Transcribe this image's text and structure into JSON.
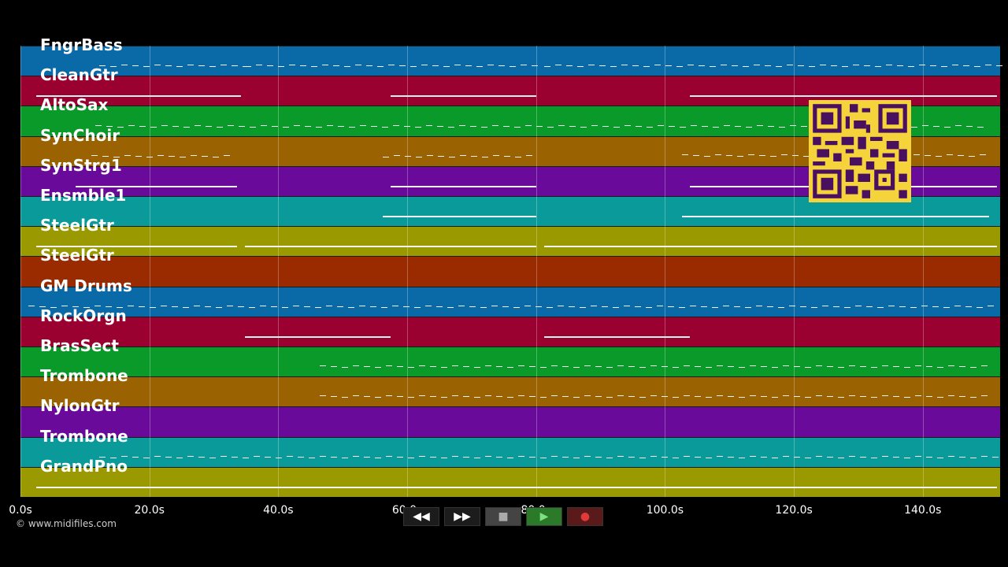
{
  "tracks": [
    {
      "name": "FngrBass",
      "color": "#0a6aa8"
    },
    {
      "name": "CleanGtr",
      "color": "#9a0030"
    },
    {
      "name": "AltoSax",
      "color": "#0a9a2a"
    },
    {
      "name": "SynChoir",
      "color": "#9a6200"
    },
    {
      "name": "SynStrg1",
      "color": "#6a0a9a"
    },
    {
      "name": "Ensmble1",
      "color": "#0a9a9a"
    },
    {
      "name": "SteelGtr",
      "color": "#9a9a00"
    },
    {
      "name": "SteelGtr",
      "color": "#9a2a00"
    },
    {
      "name": "GM Drums",
      "color": "#0a6aa8"
    },
    {
      "name": "RockOrgn",
      "color": "#9a0030"
    },
    {
      "name": "BrasSect",
      "color": "#0a9a2a"
    },
    {
      "name": "Trombone",
      "color": "#9a6200"
    },
    {
      "name": "NylonGtr",
      "color": "#6a0a9a"
    },
    {
      "name": "Trombone",
      "color": "#0a9a9a"
    },
    {
      "name": "GrandPno",
      "color": "#9a9a00"
    }
  ],
  "timeline": {
    "ticks": [
      "0.0s",
      "20.0s",
      "40.0s",
      "60.0s",
      "80.0s",
      "100.0s",
      "120.0s",
      "140.0s"
    ],
    "seconds": [
      0,
      20,
      40,
      60,
      80,
      100,
      120,
      140
    ],
    "max_seconds": 152
  },
  "transport": {
    "rewind": "◀◀",
    "fast_forward": "▶▶",
    "stop": "■",
    "play": "▶",
    "record": "●"
  },
  "copyright": "© www.midifiles.com"
}
